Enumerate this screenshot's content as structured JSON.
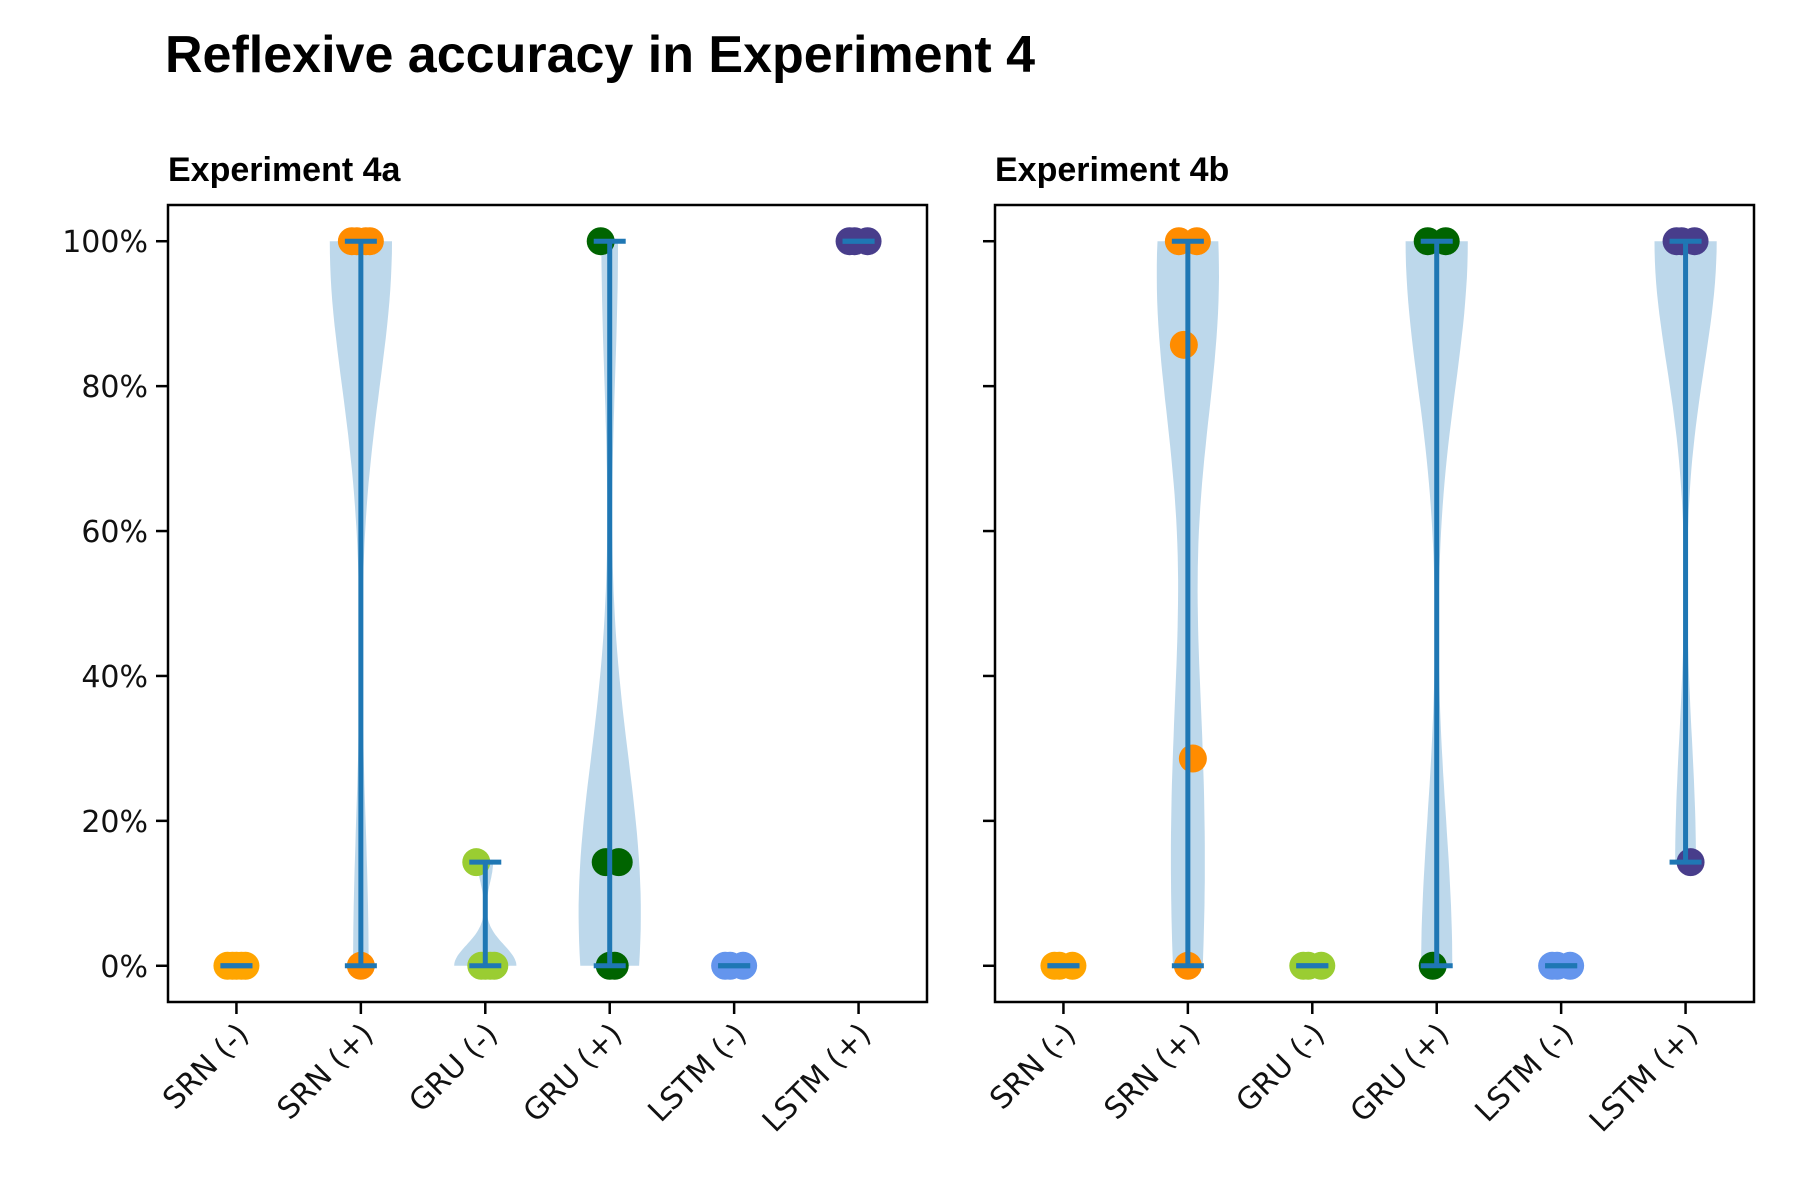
{
  "figure_title": "Reflexive accuracy in Experiment 4",
  "colors": {
    "violin_fill": "#b9d6ea",
    "range_line": "#1f77b4",
    "axis": "#000000",
    "SRN (-)": "#ffa500",
    "SRN (+)": "#ff8c00",
    "GRU (-)": "#9acd32",
    "GRU (+)": "#006400",
    "LSTM (-)": "#6495ed",
    "LSTM (+)": "#483d8b"
  },
  "chart_data": [
    {
      "type": "violin",
      "title": "Experiment 4a",
      "xlabel": "",
      "ylabel": "",
      "categories": [
        "SRN (-)",
        "SRN (+)",
        "GRU (-)",
        "GRU (+)",
        "LSTM (-)",
        "LSTM (+)"
      ],
      "ylim": [
        -5,
        105
      ],
      "yticks": [
        0,
        20,
        40,
        60,
        80,
        100
      ],
      "ytick_labels": [
        "0%",
        "20%",
        "40%",
        "60%",
        "80%",
        "100%"
      ],
      "grid": false,
      "series": [
        {
          "category": "SRN (-)",
          "points": [
            0,
            0,
            0,
            0,
            0
          ],
          "min": 0,
          "max": 0
        },
        {
          "category": "SRN (+)",
          "points": [
            100,
            100,
            100,
            100,
            0
          ],
          "min": 0,
          "max": 100
        },
        {
          "category": "GRU (-)",
          "points": [
            14.3,
            0,
            0,
            0,
            0
          ],
          "min": 0,
          "max": 14.3
        },
        {
          "category": "GRU (+)",
          "points": [
            100,
            14.3,
            14.3,
            0,
            0
          ],
          "min": 0,
          "max": 100
        },
        {
          "category": "LSTM (-)",
          "points": [
            0,
            0,
            0
          ],
          "min": 0,
          "max": 0
        },
        {
          "category": "LSTM (+)",
          "points": [
            100,
            100,
            100
          ],
          "min": 100,
          "max": 100
        }
      ]
    },
    {
      "type": "violin",
      "title": "Experiment 4b",
      "xlabel": "",
      "ylabel": "",
      "categories": [
        "SRN (-)",
        "SRN (+)",
        "GRU (-)",
        "GRU (+)",
        "LSTM (-)",
        "LSTM (+)"
      ],
      "ylim": [
        -5,
        105
      ],
      "yticks": [
        0,
        20,
        40,
        60,
        80,
        100
      ],
      "ytick_labels": [
        "",
        "",
        "",
        "",
        "",
        ""
      ],
      "grid": false,
      "series": [
        {
          "category": "SRN (-)",
          "points": [
            0,
            0,
            0
          ],
          "min": 0,
          "max": 0
        },
        {
          "category": "SRN (+)",
          "points": [
            100,
            100,
            85.7,
            28.6,
            0
          ],
          "min": 0,
          "max": 100
        },
        {
          "category": "GRU (-)",
          "points": [
            0,
            0,
            0
          ],
          "min": 0,
          "max": 0
        },
        {
          "category": "GRU (+)",
          "points": [
            100,
            100,
            0
          ],
          "min": 0,
          "max": 100
        },
        {
          "category": "LSTM (-)",
          "points": [
            0,
            0,
            0
          ],
          "min": 0,
          "max": 0
        },
        {
          "category": "LSTM (+)",
          "points": [
            100,
            100,
            100,
            14.3
          ],
          "min": 14.3,
          "max": 100
        }
      ]
    }
  ]
}
